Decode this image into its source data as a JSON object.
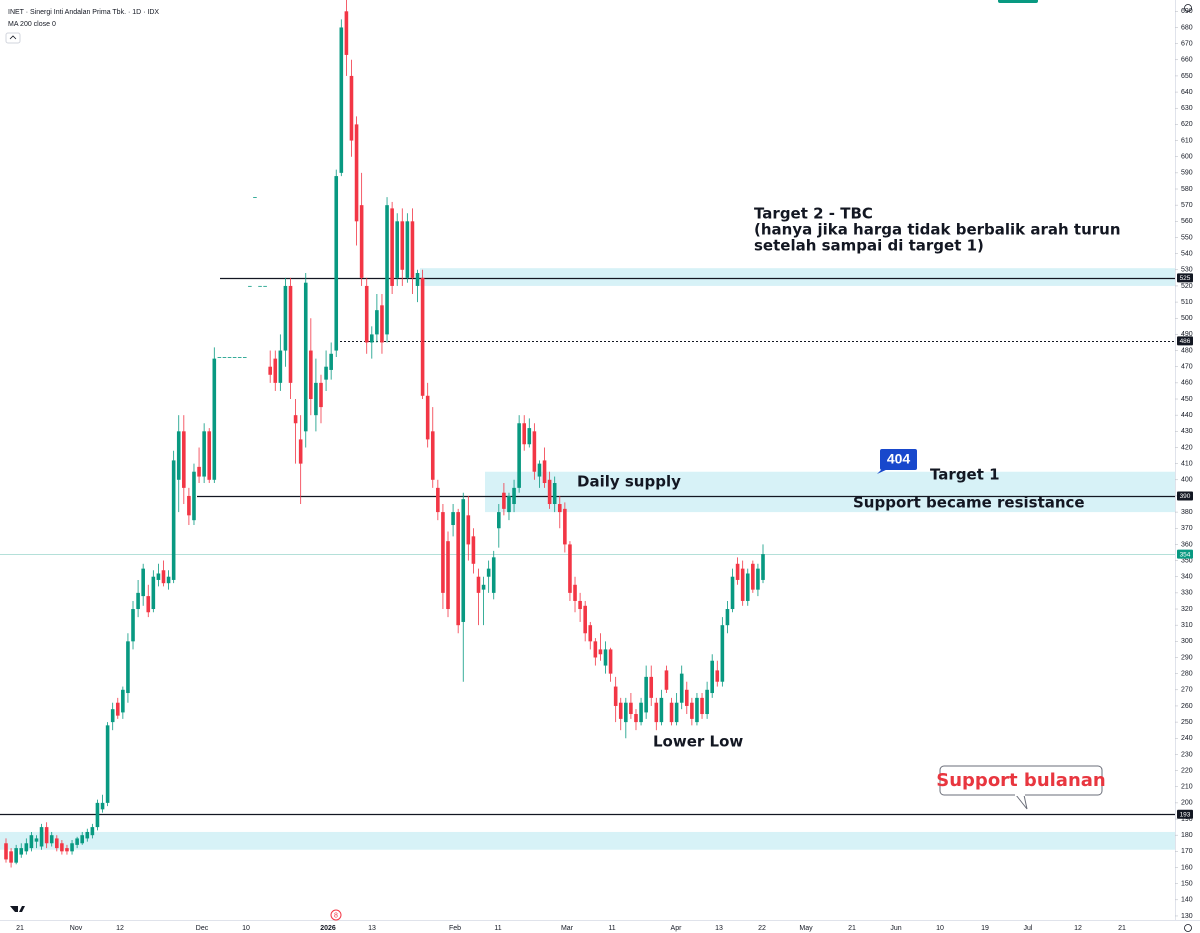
{
  "chart_data": {
    "type": "candlestick",
    "title": "INET · Sinergi Inti Andalan Prima Tbk. · 1D · IDX",
    "indicator": "MA 200 close 0",
    "event_badge": "8",
    "up_color": "#089981",
    "down_color": "#f23645",
    "ylim": [
      127.5,
      697
    ],
    "yticks": [
      130,
      140,
      150,
      160,
      170,
      180,
      190,
      200,
      210,
      220,
      230,
      240,
      250,
      260,
      270,
      280,
      290,
      300,
      310,
      320,
      330,
      340,
      350,
      360,
      370,
      380,
      390,
      400,
      410,
      420,
      430,
      440,
      450,
      460,
      470,
      480,
      490,
      500,
      510,
      520,
      530,
      540,
      550,
      560,
      570,
      580,
      590,
      600,
      610,
      620,
      630,
      640,
      650,
      660,
      670,
      680,
      690
    ],
    "x_axis_labels": [
      "21",
      "Nov",
      "12",
      "Dec",
      "10",
      "2026",
      "13",
      "Feb",
      "11",
      "Mar",
      "11",
      "Apr",
      "13",
      "22",
      "May",
      "21",
      "Jun",
      "10",
      "19",
      "Jul",
      "12",
      "21"
    ],
    "ohlc": [
      [
        175,
        178,
        163,
        165
      ],
      [
        170,
        172,
        160,
        163
      ],
      [
        163,
        174,
        162,
        172
      ],
      [
        168,
        175,
        166,
        172
      ],
      [
        170,
        178,
        168,
        175
      ],
      [
        172,
        182,
        170,
        180
      ],
      [
        176,
        180,
        172,
        178
      ],
      [
        173,
        187,
        171,
        185
      ],
      [
        185,
        188,
        172,
        175
      ],
      [
        175,
        182,
        173,
        180
      ],
      [
        178,
        180,
        170,
        172
      ],
      [
        175,
        177,
        168,
        170
      ],
      [
        172,
        174,
        168,
        170
      ],
      [
        170,
        177,
        168,
        175
      ],
      [
        174,
        179,
        172,
        178
      ],
      [
        175,
        182,
        174,
        180
      ],
      [
        178,
        184,
        176,
        182
      ],
      [
        180,
        187,
        178,
        185
      ],
      [
        185,
        202,
        183,
        200
      ],
      [
        196,
        205,
        194,
        200
      ],
      [
        200,
        250,
        198,
        248
      ],
      [
        250,
        262,
        245,
        258
      ],
      [
        262,
        265,
        252,
        254
      ],
      [
        256,
        272,
        252,
        270
      ],
      [
        268,
        305,
        262,
        300
      ],
      [
        300,
        325,
        295,
        320
      ],
      [
        320,
        338,
        315,
        330
      ],
      [
        328,
        348,
        322,
        345
      ],
      [
        328,
        335,
        315,
        318
      ],
      [
        320,
        344,
        318,
        340
      ],
      [
        338,
        348,
        334,
        342
      ],
      [
        344,
        350,
        334,
        336
      ],
      [
        336,
        344,
        332,
        340
      ],
      [
        338,
        418,
        336,
        412
      ],
      [
        400,
        440,
        380,
        430
      ],
      [
        430,
        440,
        385,
        395
      ],
      [
        390,
        395,
        372,
        378
      ],
      [
        375,
        410,
        372,
        405
      ],
      [
        408,
        420,
        398,
        402
      ],
      [
        402,
        435,
        398,
        430
      ],
      [
        430,
        432,
        398,
        400
      ],
      [
        400,
        482,
        398,
        475
      ],
      [
        476,
        476,
        476,
        476
      ],
      [
        476,
        476,
        476,
        476
      ],
      [
        476,
        476,
        476,
        476
      ],
      [
        476,
        476,
        476,
        476
      ],
      [
        476,
        476,
        476,
        476
      ],
      [
        476,
        476,
        476,
        476
      ],
      [
        520,
        520,
        520,
        520
      ],
      [
        575,
        575,
        575,
        575
      ],
      [
        520,
        520,
        520,
        520
      ],
      [
        520,
        520,
        520,
        520
      ],
      [
        470,
        480,
        460,
        465
      ],
      [
        475,
        480,
        455,
        460
      ],
      [
        460,
        490,
        455,
        480
      ],
      [
        480,
        525,
        470,
        520
      ],
      [
        520,
        525,
        450,
        460
      ],
      [
        440,
        450,
        410,
        435
      ],
      [
        425,
        440,
        385,
        410
      ],
      [
        430,
        528,
        420,
        522
      ],
      [
        480,
        500,
        440,
        450
      ],
      [
        440,
        475,
        430,
        460
      ],
      [
        460,
        465,
        435,
        445
      ],
      [
        462,
        480,
        455,
        470
      ],
      [
        468,
        485,
        462,
        478
      ],
      [
        480,
        592,
        476,
        588
      ],
      [
        590,
        685,
        588,
        680
      ],
      [
        690,
        697,
        650,
        663
      ],
      [
        650,
        660,
        600,
        610
      ],
      [
        620,
        625,
        545,
        560
      ],
      [
        570,
        590,
        520,
        525
      ],
      [
        520,
        525,
        478,
        485
      ],
      [
        485,
        495,
        475,
        490
      ],
      [
        490,
        515,
        485,
        505
      ],
      [
        508,
        515,
        478,
        485
      ],
      [
        490,
        575,
        485,
        570
      ],
      [
        568,
        572,
        515,
        520
      ],
      [
        525,
        565,
        520,
        560
      ],
      [
        560,
        568,
        520,
        530
      ],
      [
        525,
        565,
        522,
        560
      ],
      [
        560,
        568,
        515,
        525
      ],
      [
        520,
        530,
        510,
        528
      ],
      [
        525,
        530,
        450,
        452
      ],
      [
        452,
        460,
        420,
        425
      ],
      [
        430,
        445,
        395,
        400
      ],
      [
        395,
        400,
        375,
        380
      ],
      [
        380,
        385,
        320,
        330
      ],
      [
        362,
        368,
        315,
        320
      ],
      [
        372,
        385,
        365,
        380
      ],
      [
        380,
        382,
        305,
        310
      ],
      [
        312,
        392,
        275,
        388
      ],
      [
        378,
        390,
        350,
        360
      ],
      [
        365,
        370,
        342,
        348
      ],
      [
        340,
        345,
        310,
        330
      ],
      [
        332,
        340,
        310,
        335
      ],
      [
        340,
        350,
        330,
        345
      ],
      [
        330,
        356,
        326,
        352
      ],
      [
        370,
        385,
        358,
        380
      ],
      [
        392,
        398,
        378,
        382
      ],
      [
        380,
        392,
        375,
        390
      ],
      [
        385,
        400,
        380,
        395
      ],
      [
        395,
        440,
        392,
        435
      ],
      [
        435,
        440,
        418,
        422
      ],
      [
        422,
        438,
        420,
        432
      ],
      [
        430,
        435,
        400,
        405
      ],
      [
        402,
        412,
        395,
        410
      ],
      [
        412,
        420,
        395,
        398
      ],
      [
        400,
        405,
        382,
        385
      ],
      [
        385,
        402,
        380,
        398
      ],
      [
        385,
        390,
        370,
        380
      ],
      [
        382,
        386,
        355,
        360
      ],
      [
        360,
        362,
        325,
        330
      ],
      [
        335,
        340,
        318,
        325
      ],
      [
        325,
        330,
        312,
        320
      ],
      [
        322,
        325,
        300,
        305
      ],
      [
        310,
        312,
        295,
        300
      ],
      [
        300,
        302,
        285,
        290
      ],
      [
        295,
        305,
        288,
        292
      ],
      [
        285,
        300,
        280,
        295
      ],
      [
        295,
        296,
        275,
        280
      ],
      [
        272,
        278,
        250,
        260
      ],
      [
        262,
        265,
        245,
        252
      ],
      [
        250,
        265,
        240,
        262
      ],
      [
        262,
        268,
        252,
        255
      ],
      [
        255,
        258,
        245,
        250
      ],
      [
        250,
        265,
        248,
        262
      ],
      [
        256,
        285,
        252,
        278
      ],
      [
        278,
        285,
        260,
        265
      ],
      [
        262,
        265,
        245,
        250
      ],
      [
        250,
        270,
        248,
        265
      ],
      [
        282,
        285,
        268,
        270
      ],
      [
        262,
        265,
        248,
        250
      ],
      [
        250,
        268,
        248,
        262
      ],
      [
        262,
        285,
        258,
        280
      ],
      [
        270,
        275,
        255,
        260
      ],
      [
        262,
        265,
        248,
        252
      ],
      [
        250,
        268,
        248,
        265
      ],
      [
        265,
        268,
        252,
        255
      ],
      [
        255,
        275,
        252,
        270
      ],
      [
        268,
        292,
        265,
        288
      ],
      [
        282,
        288,
        272,
        275
      ],
      [
        275,
        315,
        272,
        310
      ],
      [
        310,
        325,
        305,
        320
      ],
      [
        320,
        345,
        318,
        340
      ],
      [
        348,
        352,
        335,
        338
      ],
      [
        345,
        350,
        322,
        325
      ],
      [
        325,
        345,
        322,
        342
      ],
      [
        348,
        350,
        330,
        332
      ],
      [
        332,
        348,
        328,
        345
      ],
      [
        338,
        360,
        336,
        354
      ]
    ],
    "price_lines": [
      525,
      486,
      390,
      193
    ],
    "last_price": 354,
    "zones": [
      [
        520,
        531
      ],
      [
        380,
        405
      ],
      [
        171,
        182
      ]
    ],
    "annotations": {
      "target2": [
        "Target 2 - TBC",
        "(hanya jika harga tidak berbalik arah turun",
        "setelah sampai di target 1)"
      ],
      "daily_supply": "Daily supply",
      "target1_price": "404",
      "target1": "Target 1",
      "support_resistance": "Support became resistance",
      "lower_low": "Lower Low",
      "support_monthly": "Support bulanan"
    }
  }
}
